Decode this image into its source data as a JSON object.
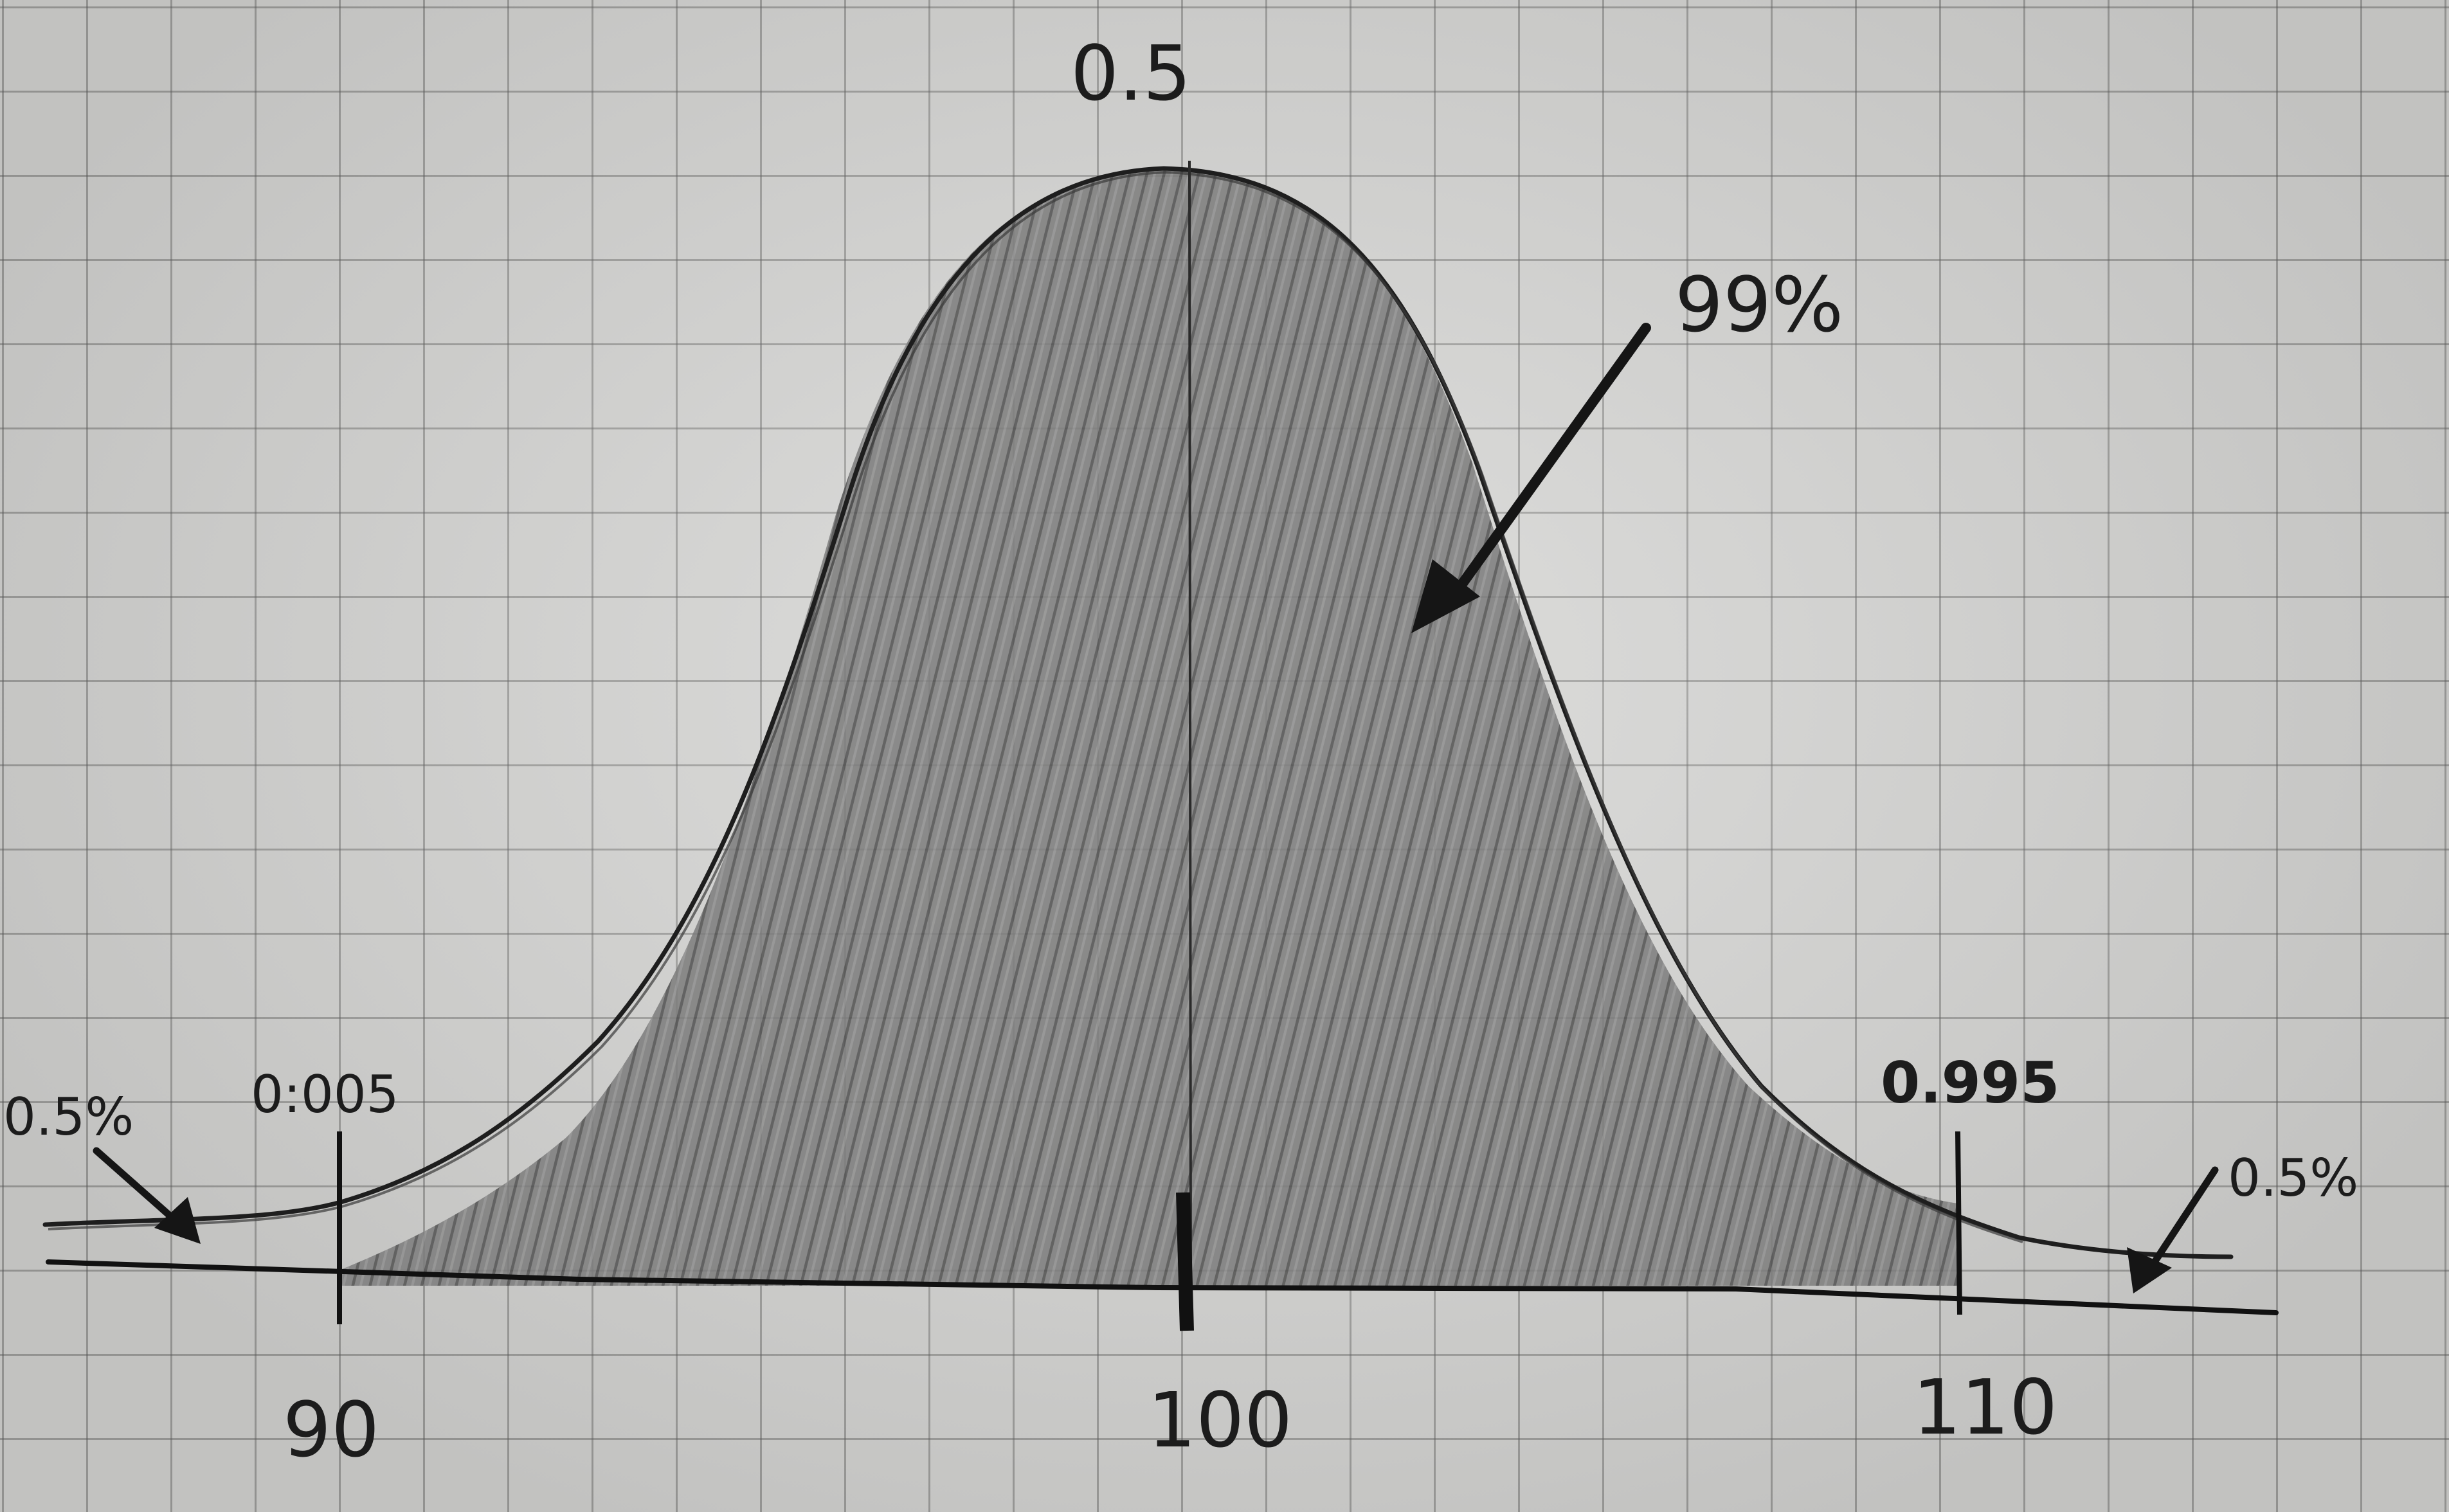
{
  "diagram": {
    "peak_label": "0.5",
    "center_area_label": "99%",
    "left_tail_label": "0.5%",
    "right_tail_label": "0.5%",
    "left_cdf_label": "0:005",
    "right_cdf_label": "0.995",
    "axis_ticks": [
      "90",
      "100",
      "110"
    ],
    "colors": {
      "paper": "#d8d8d6",
      "grid": "#5f5f5f",
      "pencil": "#1c1c1c",
      "shading": "#6b6b6b"
    }
  }
}
